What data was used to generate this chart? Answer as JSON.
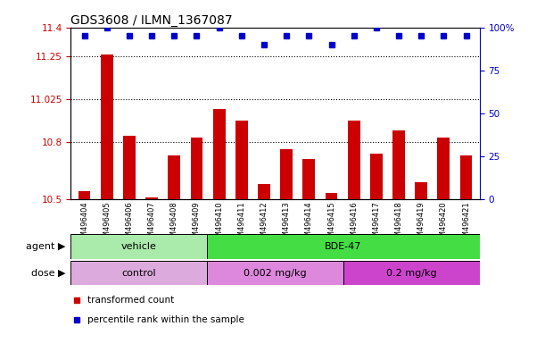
{
  "title": "GDS3608 / ILMN_1367087",
  "samples": [
    "GSM496404",
    "GSM496405",
    "GSM496406",
    "GSM496407",
    "GSM496408",
    "GSM496409",
    "GSM496410",
    "GSM496411",
    "GSM496412",
    "GSM496413",
    "GSM496414",
    "GSM496415",
    "GSM496416",
    "GSM496417",
    "GSM496418",
    "GSM496419",
    "GSM496420",
    "GSM496421"
  ],
  "bar_values": [
    10.54,
    11.26,
    10.83,
    10.51,
    10.73,
    10.82,
    10.97,
    10.91,
    10.58,
    10.76,
    10.71,
    10.53,
    10.91,
    10.74,
    10.86,
    10.59,
    10.82,
    10.73
  ],
  "percentile_values": [
    95,
    100,
    95,
    95,
    95,
    95,
    100,
    95,
    90,
    95,
    95,
    90,
    95,
    100,
    95,
    95,
    95,
    95
  ],
  "bar_color": "#cc0000",
  "percentile_color": "#0000cc",
  "ylim_left": [
    10.5,
    11.4
  ],
  "ylim_right": [
    0,
    100
  ],
  "yticks_left": [
    10.5,
    10.8,
    11.025,
    11.25,
    11.4
  ],
  "ytick_labels_left": [
    "10.5",
    "10.8",
    "11.025",
    "11.25",
    "11.4"
  ],
  "yticks_right": [
    0,
    25,
    50,
    75,
    100
  ],
  "ytick_labels_right": [
    "0",
    "25",
    "50",
    "75",
    "100%"
  ],
  "hlines": [
    11.25,
    11.025,
    10.8
  ],
  "agent_data": [
    {
      "label": "vehicle",
      "start": 0,
      "end": 6,
      "color": "#aaeaaa"
    },
    {
      "label": "BDE-47",
      "start": 6,
      "end": 18,
      "color": "#44dd44"
    }
  ],
  "dose_data": [
    {
      "label": "control",
      "start": 0,
      "end": 6,
      "color": "#ddaadd"
    },
    {
      "label": "0.002 mg/kg",
      "start": 6,
      "end": 12,
      "color": "#dd88dd"
    },
    {
      "label": "0.2 mg/kg",
      "start": 12,
      "end": 18,
      "color": "#cc44cc"
    }
  ],
  "legend_items": [
    "transformed count",
    "percentile rank within the sample"
  ],
  "legend_colors": [
    "#cc0000",
    "#0000cc"
  ],
  "title_fontsize": 10,
  "tick_fontsize": 7.5,
  "bar_width": 0.55
}
